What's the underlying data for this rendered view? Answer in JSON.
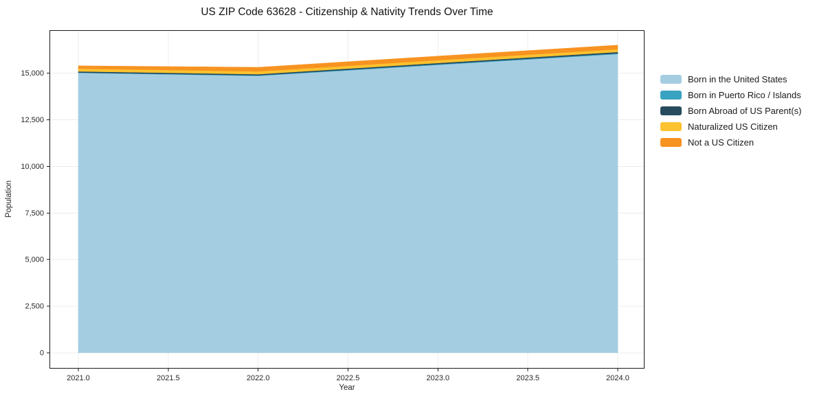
{
  "chart_data": {
    "type": "area",
    "stacked": true,
    "title": "US ZIP Code 63628 - Citizenship & Nativity Trends Over Time",
    "xlabel": "Year",
    "ylabel": "Population",
    "x": [
      2021,
      2022,
      2023,
      2024
    ],
    "series": [
      {
        "name": "Born in the United States",
        "color": "#a5cde2",
        "values": [
          15020,
          14860,
          15450,
          16030
        ]
      },
      {
        "name": "Born in Puerto Rico / Islands",
        "color": "#38a2c0",
        "values": [
          20,
          30,
          35,
          40
        ]
      },
      {
        "name": "Born Abroad of US Parent(s)",
        "color": "#264a5e",
        "values": [
          60,
          60,
          65,
          70
        ]
      },
      {
        "name": "Naturalized US Citizen",
        "color": "#fcc22f",
        "values": [
          150,
          150,
          150,
          150
        ]
      },
      {
        "name": "Not a US Citizen",
        "color": "#f79321",
        "values": [
          150,
          220,
          220,
          220
        ]
      }
    ],
    "totals": [
      15400,
      15320,
      15920,
      16510
    ],
    "xlim": [
      2020.8395,
      2024.149
    ],
    "ylim": [
      -850,
      17310
    ],
    "xticks": [
      2021.0,
      2021.5,
      2022.0,
      2022.5,
      2023.0,
      2023.5,
      2024.0
    ],
    "xtick_labels": [
      "2021.0",
      "2021.5",
      "2022.0",
      "2022.5",
      "2023.0",
      "2023.5",
      "2024.0"
    ],
    "yticks": [
      0,
      2500,
      5000,
      7500,
      10000,
      12500,
      15000
    ],
    "ytick_labels": [
      "0",
      "2,500",
      "5,000",
      "7,500",
      "10,000",
      "12,500",
      "15,000"
    ],
    "grid": true,
    "grid_color": "#ececec",
    "axis_border_color": "#1a1a1a",
    "background_color": "#ffffff",
    "legend_position": "right",
    "legend_frame": false
  }
}
